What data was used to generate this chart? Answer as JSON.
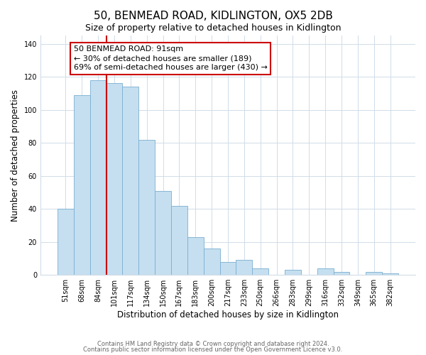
{
  "title": "50, BENMEAD ROAD, KIDLINGTON, OX5 2DB",
  "subtitle": "Size of property relative to detached houses in Kidlington",
  "xlabel": "Distribution of detached houses by size in Kidlington",
  "ylabel": "Number of detached properties",
  "categories": [
    "51sqm",
    "68sqm",
    "84sqm",
    "101sqm",
    "117sqm",
    "134sqm",
    "150sqm",
    "167sqm",
    "183sqm",
    "200sqm",
    "217sqm",
    "233sqm",
    "250sqm",
    "266sqm",
    "283sqm",
    "299sqm",
    "316sqm",
    "332sqm",
    "349sqm",
    "365sqm",
    "382sqm"
  ],
  "values": [
    40,
    109,
    118,
    116,
    114,
    82,
    51,
    42,
    23,
    16,
    8,
    9,
    4,
    0,
    3,
    0,
    4,
    2,
    0,
    2,
    1
  ],
  "bar_color": "#c5dff0",
  "bar_edge_color": "#7aaed0",
  "vline_x_index": 2,
  "vline_color": "#cc0000",
  "annotation_text": "50 BENMEAD ROAD: 91sqm\n← 30% of detached houses are smaller (189)\n69% of semi-detached houses are larger (430) →",
  "annotation_box_color": "#ffffff",
  "annotation_box_edge": "#cc0000",
  "ylim": [
    0,
    145
  ],
  "yticks": [
    0,
    20,
    40,
    60,
    80,
    100,
    120,
    140
  ],
  "background_color": "#ffffff",
  "footer_line1": "Contains HM Land Registry data © Crown copyright and database right 2024.",
  "footer_line2": "Contains public sector information licensed under the Open Government Licence v3.0.",
  "title_fontsize": 11,
  "subtitle_fontsize": 9,
  "xlabel_fontsize": 8.5,
  "ylabel_fontsize": 8.5,
  "tick_fontsize": 7,
  "annotation_fontsize": 8,
  "footer_fontsize": 6,
  "grid_color": "#d0dce8"
}
